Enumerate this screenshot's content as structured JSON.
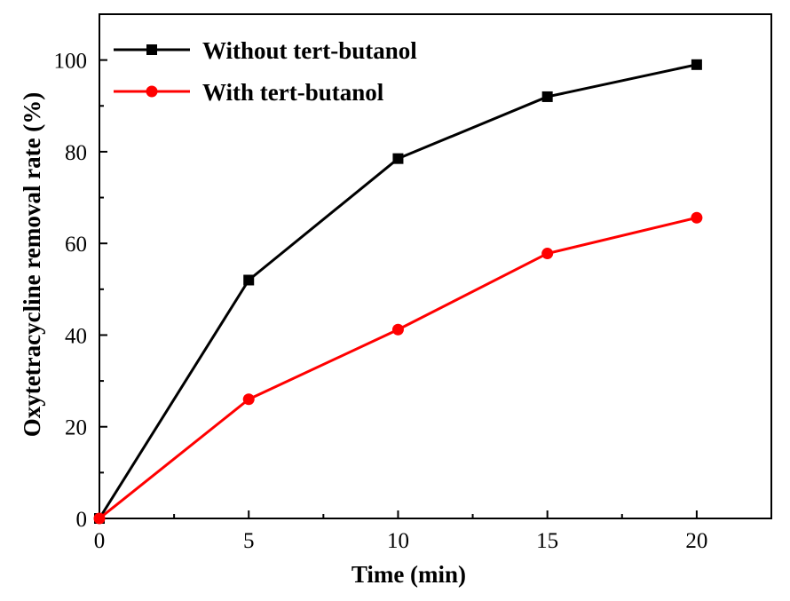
{
  "chart_data": {
    "type": "line",
    "title": "",
    "xlabel": "Time (min)",
    "ylabel": "Oxytetracycline removal rate (%)",
    "xlim": [
      0,
      22.5
    ],
    "ylim": [
      0,
      110
    ],
    "xticks": [
      0,
      5,
      10,
      15,
      20
    ],
    "xminor": [
      2.5,
      7.5,
      12.5,
      17.5
    ],
    "yticks": [
      0,
      20,
      40,
      60,
      80,
      100
    ],
    "yminor": [
      10,
      30,
      50,
      70,
      90
    ],
    "grid": false,
    "legend_position": "top-left",
    "x": [
      0,
      5,
      10,
      15,
      20
    ],
    "series": [
      {
        "name": "Without tert-butanol",
        "color": "#000000",
        "marker": "square",
        "values": [
          0,
          52,
          78.5,
          92,
          99
        ]
      },
      {
        "name": "With tert-butanol",
        "color": "#ff0000",
        "marker": "circle",
        "values": [
          0,
          26,
          41.2,
          57.8,
          65.6
        ]
      }
    ]
  }
}
